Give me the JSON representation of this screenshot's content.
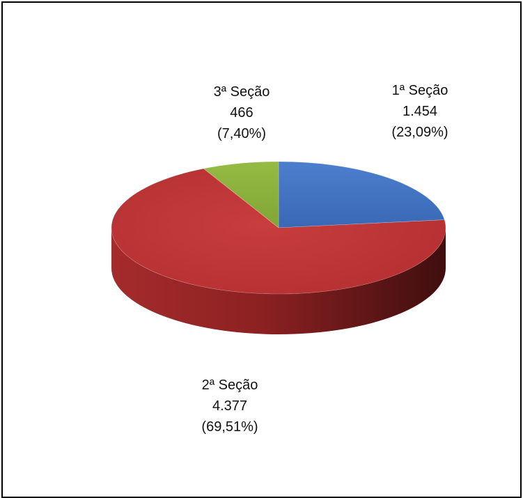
{
  "chart_data": {
    "type": "pie",
    "style": "3d",
    "slices": [
      {
        "name": "1ª Seção",
        "value": 1454,
        "value_label": "1.454",
        "percent_label": "(23,09%)",
        "percent": 23.09,
        "color": "#4472C4"
      },
      {
        "name": "2ª Seção",
        "value": 4377,
        "value_label": "4.377",
        "percent_label": "(69,51%)",
        "percent": 69.51,
        "color": "#C0393B"
      },
      {
        "name": "3ª Seção",
        "value": 466,
        "value_label": "466",
        "percent_label": "(7,40%)",
        "percent": 7.4,
        "color": "#8DB13C"
      }
    ]
  }
}
